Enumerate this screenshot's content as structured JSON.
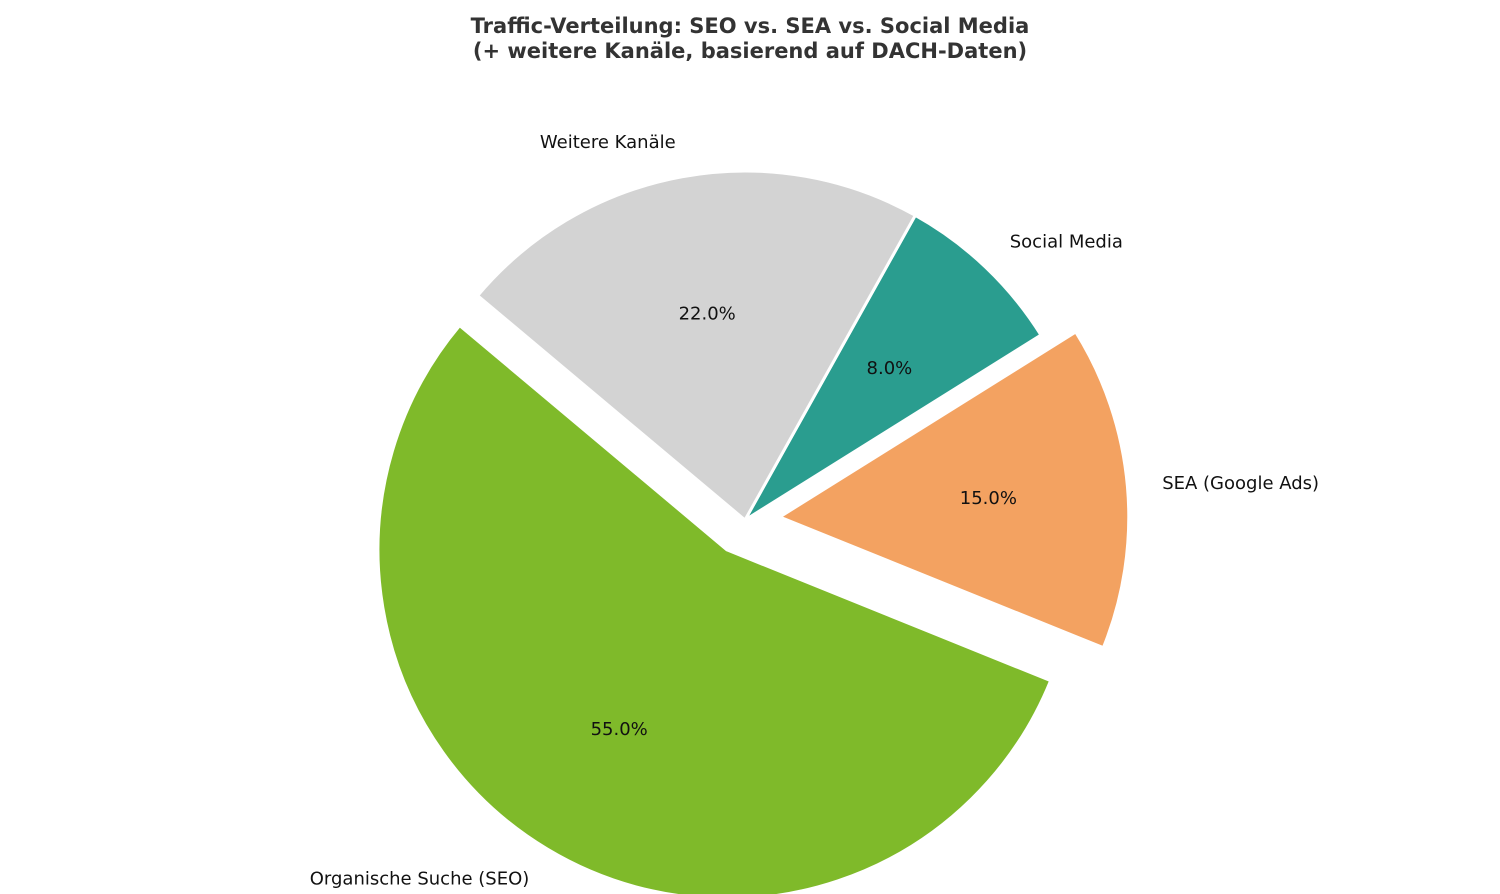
{
  "chart_data": {
    "type": "pie",
    "title": "Traffic-Verteilung: SEO vs. SEA vs. Social Media",
    "subtitle": "(+ weitere Kanäle, basierend auf DACH-Daten)",
    "start_angle_deg": 140,
    "direction": "counterclockwise",
    "slices": [
      {
        "label": "Organische Suche (SEO)",
        "value": 55.0,
        "pct_label": "55.0%",
        "color": "#7fba2a",
        "exploded": true
      },
      {
        "label": "SEA (Google Ads)",
        "value": 15.0,
        "pct_label": "15.0%",
        "color": "#f3a261",
        "exploded": true
      },
      {
        "label": "Social Media",
        "value": 8.0,
        "pct_label": "8.0%",
        "color": "#2a9d8f",
        "exploded": false
      },
      {
        "label": "Weitere Kanäle",
        "value": 22.0,
        "pct_label": "22.0%",
        "color": "#d3d3d3",
        "exploded": false
      }
    ]
  }
}
